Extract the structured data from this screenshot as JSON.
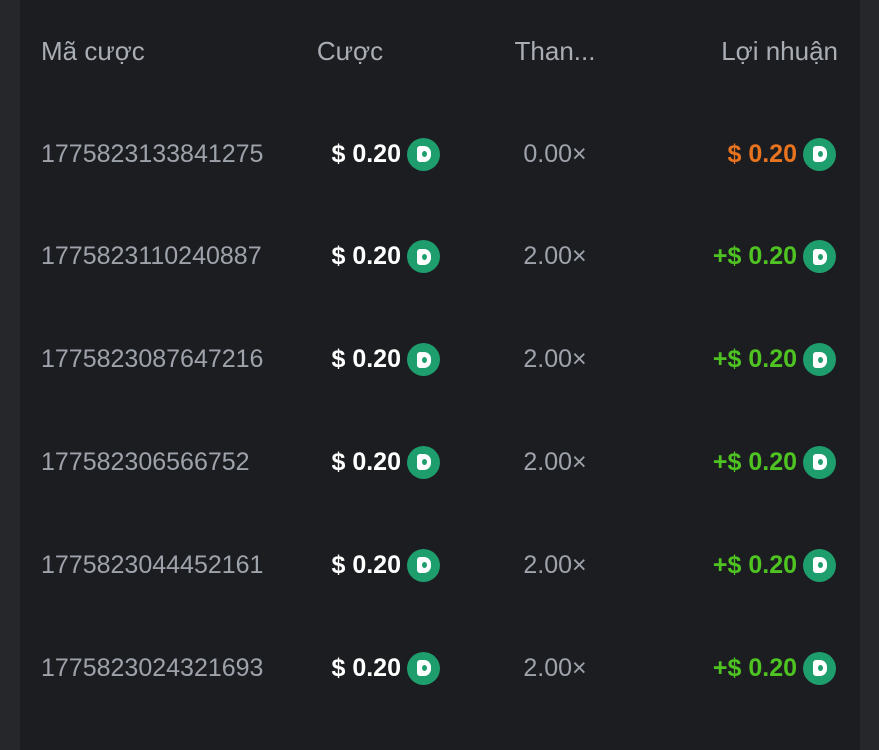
{
  "header": {
    "id": "Mã cược",
    "bet": "Cược",
    "multiplier": "Than...",
    "profit": "Lợi nhuận"
  },
  "colors": {
    "loss": "#e8731f",
    "win": "#4ec322",
    "coin": "#1e9d6d"
  },
  "rows": [
    {
      "id": "1775823133841275",
      "bet": "$ 0.20",
      "multiplier": "0.00×",
      "profit": "$ 0.20",
      "status": "loss"
    },
    {
      "id": "1775823110240887",
      "bet": "$ 0.20",
      "multiplier": "2.00×",
      "profit": "+$ 0.20",
      "status": "win"
    },
    {
      "id": "1775823087647216",
      "bet": "$ 0.20",
      "multiplier": "2.00×",
      "profit": "+$ 0.20",
      "status": "win"
    },
    {
      "id": "177582306566752",
      "bet": "$ 0.20",
      "multiplier": "2.00×",
      "profit": "+$ 0.20",
      "status": "win"
    },
    {
      "id": "1775823044452161",
      "bet": "$ 0.20",
      "multiplier": "2.00×",
      "profit": "+$ 0.20",
      "status": "win"
    },
    {
      "id": "1775823024321693",
      "bet": "$ 0.20",
      "multiplier": "2.00×",
      "profit": "+$ 0.20",
      "status": "win"
    }
  ]
}
